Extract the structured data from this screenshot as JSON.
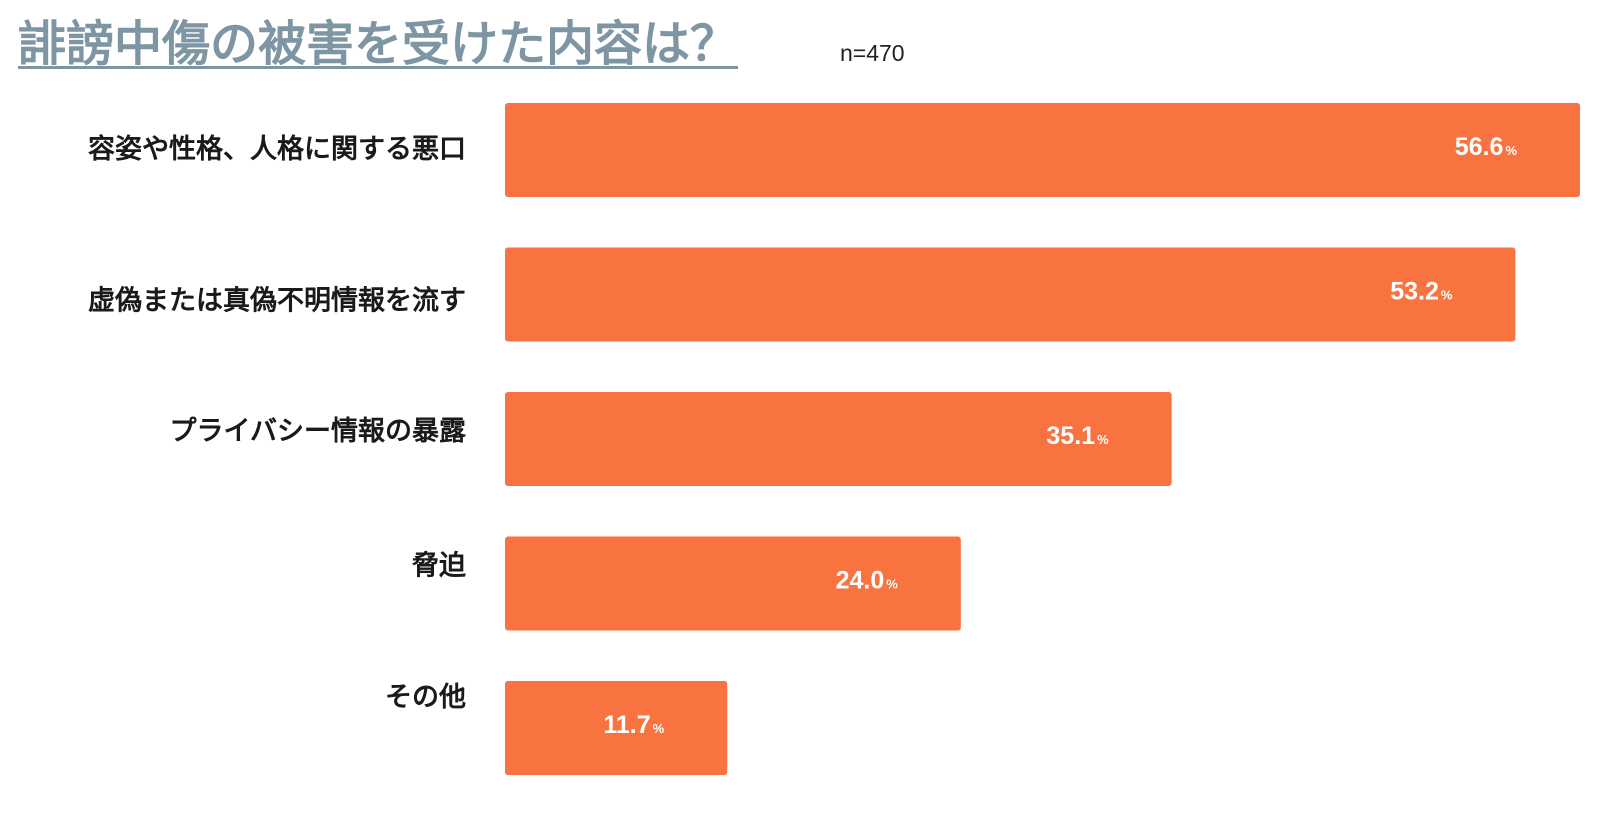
{
  "header": {
    "title": "誹謗中傷の被害を受けた内容は？",
    "sample_size": "n=470"
  },
  "colors": {
    "bar": "#f97341",
    "title": "#7e95a3"
  },
  "chart_data": {
    "type": "bar",
    "orientation": "horizontal",
    "title": "誹謗中傷の被害を受けた内容は？",
    "categories": [
      "容姿や性格、人格に関する悪口",
      "虚偽または真偽不明情報を流す",
      "プライバシー情報の暴露",
      "脅迫",
      "その他"
    ],
    "values": [
      56.6,
      53.2,
      35.1,
      24.0,
      11.7
    ],
    "value_labels": [
      "56.6",
      "53.2",
      "35.1",
      "24.0",
      "11.7"
    ],
    "unit": "%",
    "xlim": [
      0,
      56.6
    ],
    "grid": false,
    "legend": "none"
  }
}
